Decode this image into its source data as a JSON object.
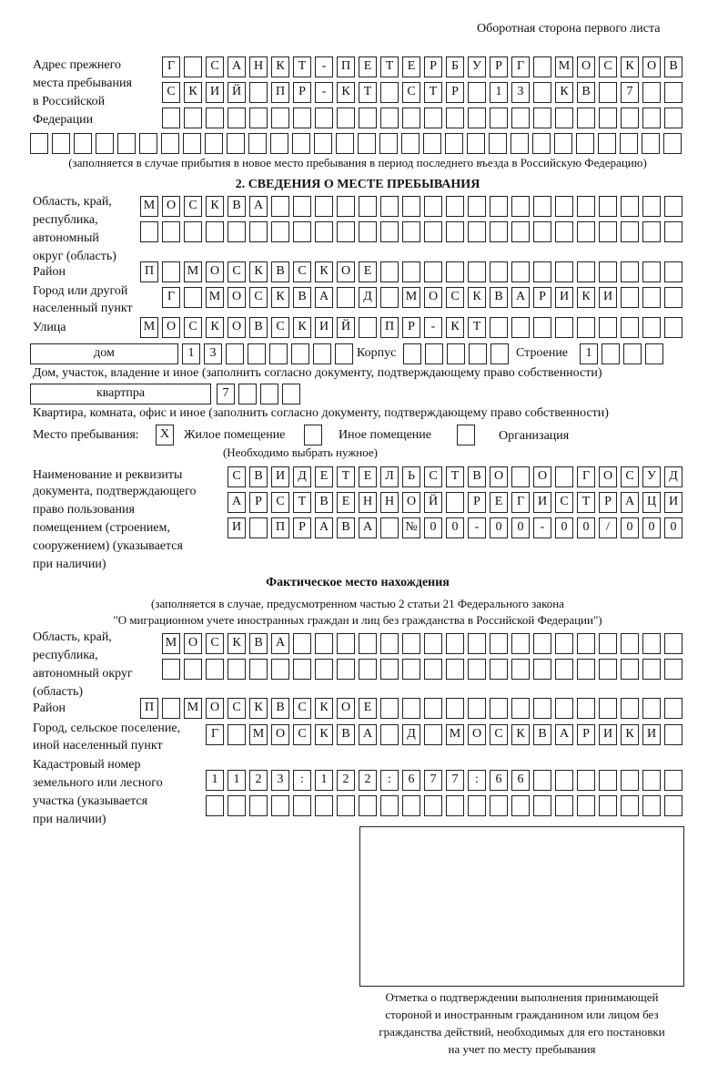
{
  "header": "Оборотная сторона первого листа",
  "previous_address": {
    "label": [
      "Адрес прежнего",
      "места пребывания",
      "в Российской",
      "Федерации"
    ],
    "rows": [
      [
        "Г",
        "",
        "С",
        "А",
        "Н",
        "К",
        "Т",
        "-",
        "П",
        "Е",
        "Т",
        "Е",
        "Р",
        "Б",
        "У",
        "Р",
        "Г",
        "",
        "М",
        "О",
        "С",
        "К",
        "О",
        "В"
      ],
      [
        "С",
        "К",
        "И",
        "Й",
        "",
        "П",
        "Р",
        "-",
        "К",
        "Т",
        "",
        "С",
        "Т",
        "Р",
        "",
        "1",
        "3",
        "",
        "К",
        "В",
        "",
        "7",
        "",
        ""
      ],
      [
        "",
        "",
        "",
        "",
        "",
        "",
        "",
        "",
        "",
        "",
        "",
        "",
        "",
        "",
        "",
        "",
        "",
        "",
        "",
        "",
        "",
        "",
        "",
        ""
      ],
      [
        "",
        "",
        "",
        "",
        "",
        "",
        "",
        "",
        "",
        "",
        "",
        "",
        "",
        "",
        "",
        "",
        "",
        "",
        "",
        "",
        "",
        "",
        "",
        "",
        "",
        "",
        "",
        "",
        "",
        ""
      ]
    ],
    "note": "(заполняется в случае прибытия в новое место пребывания в период последнего въезда в Российскую Федерацию)"
  },
  "stay": {
    "section_title": "2. СВЕДЕНИЯ О МЕСТЕ ПРЕБЫВАНИЯ",
    "region_label": [
      "Область, край,",
      "республика,",
      "автономный",
      "округ (область)"
    ],
    "region_rows": [
      [
        "М",
        "О",
        "С",
        "К",
        "В",
        "А",
        "",
        "",
        "",
        "",
        "",
        "",
        "",
        "",
        "",
        "",
        "",
        "",
        "",
        "",
        "",
        "",
        "",
        "",
        ""
      ],
      [
        "",
        "",
        "",
        "",
        "",
        "",
        "",
        "",
        "",
        "",
        "",
        "",
        "",
        "",
        "",
        "",
        "",
        "",
        "",
        "",
        "",
        "",
        "",
        "",
        ""
      ]
    ],
    "district_label": "Район",
    "district_row": [
      "П",
      "",
      "М",
      "О",
      "С",
      "К",
      "В",
      "С",
      "К",
      "О",
      "Е",
      "",
      "",
      "",
      "",
      "",
      "",
      "",
      "",
      "",
      "",
      "",
      "",
      "",
      ""
    ],
    "city_label": [
      "Город или другой",
      "населенный пункт"
    ],
    "city_row": [
      "Г",
      "",
      "М",
      "О",
      "С",
      "К",
      "В",
      "А",
      "",
      "Д",
      "",
      "М",
      "О",
      "С",
      "К",
      "В",
      "А",
      "Р",
      "И",
      "К",
      "И",
      "",
      "",
      ""
    ],
    "street_label": "Улица",
    "street_row": [
      "М",
      "О",
      "С",
      "К",
      "О",
      "В",
      "С",
      "К",
      "И",
      "Й",
      "",
      "П",
      "Р",
      "-",
      "К",
      "Т",
      "",
      "",
      "",
      "",
      "",
      "",
      "",
      "",
      ""
    ],
    "house_type": "дом",
    "house_row": [
      "1",
      "3",
      "",
      "",
      "",
      "",
      "",
      ""
    ],
    "korpus_label": "Корпус",
    "korpus_row": [
      "",
      "",
      "",
      "",
      ""
    ],
    "building_label": "Строение",
    "building_row": [
      "1",
      "",
      "",
      ""
    ],
    "house_note": "Дом, участок, владение и иное (заполнить согласно документу, подтверждающему право собственности)",
    "apt_type": "квартпра",
    "apt_row": [
      "7",
      "",
      "",
      ""
    ],
    "apt_note": "Квартира, комната, офис и иное (заполнить согласно документу, подтверждающему право собственности)",
    "place_label": "Место пребывания:",
    "options": [
      {
        "label": "Жилое помещение",
        "mark": "X"
      },
      {
        "label": "Иное помещение",
        "mark": ""
      },
      {
        "label": "Организация",
        "mark": ""
      }
    ],
    "choose_note": "(Необходимо выбрать нужное)",
    "doc_label": [
      "Наименование и реквизиты",
      "документа, подтверждающего",
      "право пользования",
      "помещением (строением,",
      "сооружением) (указывается",
      "при наличии)"
    ],
    "doc_rows": [
      [
        "С",
        "В",
        "И",
        "Д",
        "Е",
        "Т",
        "Е",
        "Л",
        "Ь",
        "С",
        "Т",
        "В",
        "О",
        "",
        "О",
        "",
        "Г",
        "О",
        "С",
        "У",
        "Д"
      ],
      [
        "А",
        "Р",
        "С",
        "Т",
        "В",
        "Е",
        "Н",
        "Н",
        "О",
        "Й",
        "",
        "Р",
        "Е",
        "Г",
        "И",
        "С",
        "Т",
        "Р",
        "А",
        "Ц",
        "И"
      ],
      [
        "И",
        "",
        "П",
        "Р",
        "А",
        "В",
        "А",
        "",
        "№",
        "0",
        "0",
        "-",
        "0",
        "0",
        "-",
        "0",
        "0",
        "/",
        "0",
        "0",
        "0"
      ]
    ]
  },
  "actual": {
    "title": "Фактическое место нахождения",
    "note": [
      "(заполняется в случае, предусмотренном частью 2 статьи 21 Федерального закона",
      "\"О миграционном учете иностранных граждан и лиц без гражданства в Российской Федерации\")"
    ],
    "region_label": [
      "Область, край,",
      "республика,",
      "автономный округ",
      "(область)"
    ],
    "region_rows": [
      [
        "М",
        "О",
        "С",
        "К",
        "В",
        "А",
        "",
        "",
        "",
        "",
        "",
        "",
        "",
        "",
        "",
        "",
        "",
        "",
        "",
        "",
        "",
        "",
        "",
        ""
      ],
      [
        "",
        "",
        "",
        "",
        "",
        "",
        "",
        "",
        "",
        "",
        "",
        "",
        "",
        "",
        "",
        "",
        "",
        "",
        "",
        "",
        "",
        "",
        "",
        ""
      ]
    ],
    "district_label": "Район",
    "district_row": [
      "П",
      "",
      "М",
      "О",
      "С",
      "К",
      "В",
      "С",
      "К",
      "О",
      "Е",
      "",
      "",
      "",
      "",
      "",
      "",
      "",
      "",
      "",
      "",
      "",
      "",
      "",
      ""
    ],
    "city_label": [
      "Город, сельское поселение,",
      "иной населенный пункт"
    ],
    "city_row": [
      "Г",
      "",
      "М",
      "О",
      "С",
      "К",
      "В",
      "А",
      "",
      "Д",
      "",
      "М",
      "О",
      "С",
      "К",
      "В",
      "А",
      "Р",
      "И",
      "К",
      "И",
      ""
    ],
    "cadastre_label": [
      "Кадастровый номер",
      "земельного или лесного",
      "участка (указывается",
      "при наличии)"
    ],
    "cadastre_rows": [
      [
        "1",
        "1",
        "2",
        "3",
        ":",
        "1",
        "2",
        "2",
        ":",
        "6",
        "7",
        "7",
        ":",
        "6",
        "6",
        "",
        "",
        "",
        "",
        "",
        "",
        ""
      ],
      [
        "",
        "",
        "",
        "",
        "",
        "",
        "",
        "",
        "",
        "",
        "",
        "",
        "",
        "",
        "",
        "",
        "",
        "",
        "",
        "",
        "",
        ""
      ]
    ]
  },
  "confirmation": {
    "caption": [
      "Отметка о подтверждении выполнения принимающей",
      "стороной и иностранным гражданином или лицом без",
      "гражданства действий, необходимых для его постановки",
      "на учет по месту пребывания"
    ]
  }
}
